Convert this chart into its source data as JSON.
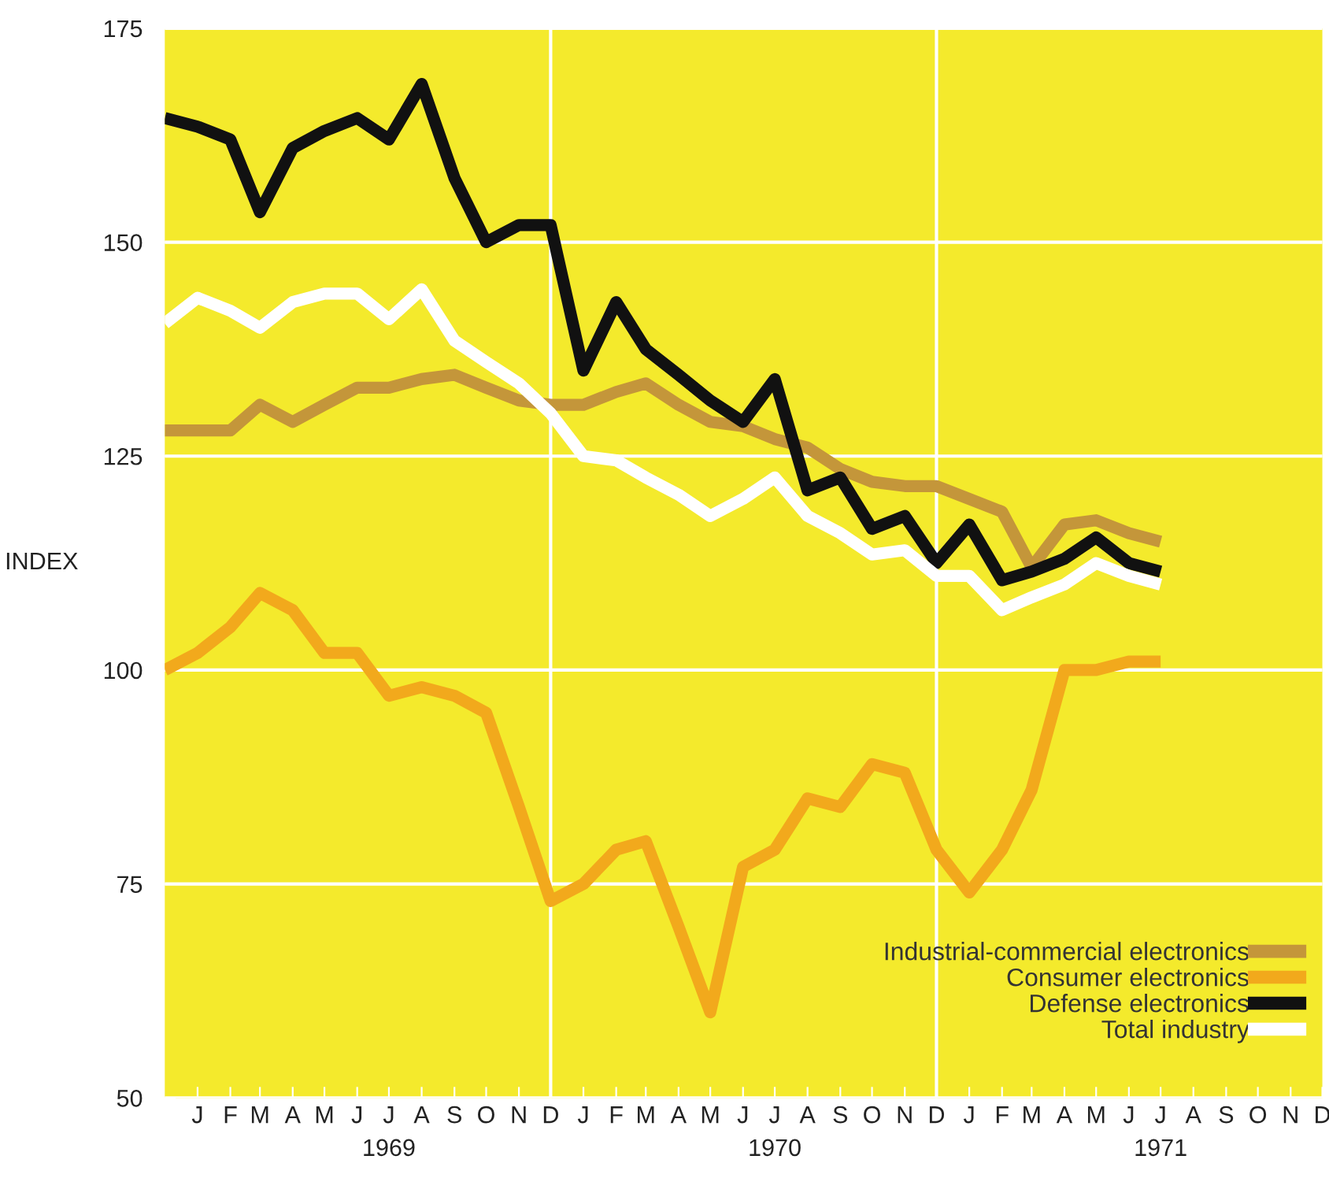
{
  "chart_data": {
    "type": "line",
    "ylabel": "INDEX",
    "x": [
      "1968-12",
      "1969-01",
      "1969-02",
      "1969-03",
      "1969-04",
      "1969-05",
      "1969-06",
      "1969-07",
      "1969-08",
      "1969-09",
      "1969-10",
      "1969-11",
      "1969-12",
      "1970-01",
      "1970-02",
      "1970-03",
      "1970-04",
      "1970-05",
      "1970-06",
      "1970-07",
      "1970-08",
      "1970-09",
      "1970-10",
      "1970-11",
      "1970-12",
      "1971-01",
      "1971-02",
      "1971-03",
      "1971-04",
      "1971-05",
      "1971-06",
      "1971-07"
    ],
    "series": [
      {
        "name": "Industrial-commercial electronics",
        "color": "#c4963a",
        "values": [
          128,
          128,
          128,
          131,
          129,
          131,
          133,
          133,
          134,
          134.5,
          133,
          131.5,
          131,
          131,
          132.5,
          133.5,
          131,
          129,
          128.5,
          127,
          126,
          123.5,
          122,
          121.5,
          121.5,
          120,
          118.5,
          112,
          117,
          117.5,
          116,
          115
        ]
      },
      {
        "name": "Consumer electronics",
        "color": "#f2a91c",
        "values": [
          100,
          102,
          105,
          109,
          107,
          102,
          102,
          97,
          98,
          97,
          95,
          84,
          73,
          75,
          79,
          80,
          70,
          60,
          77,
          79,
          85,
          84,
          89,
          88,
          79,
          74,
          79,
          86,
          100,
          100,
          101,
          101
        ]
      },
      {
        "name": "Defense electronics",
        "color": "#111111",
        "values": [
          164.5,
          163.5,
          162,
          153.5,
          161,
          163,
          164.5,
          162,
          168.5,
          157.5,
          150,
          152,
          152,
          135,
          143,
          137.5,
          134.5,
          131.5,
          129,
          134,
          121,
          122.5,
          116.5,
          118,
          112.5,
          117,
          110.5,
          111.5,
          113,
          115.5,
          112.5,
          111.5
        ]
      },
      {
        "name": "Total industry",
        "color": "#ffffff",
        "values": [
          140.5,
          143.5,
          142,
          140,
          143,
          144,
          144,
          141,
          144.5,
          138.5,
          136,
          133.5,
          130,
          125,
          124.5,
          122.5,
          120.5,
          118,
          120,
          122.5,
          118,
          116,
          113.5,
          114,
          111,
          111,
          107,
          108.5,
          110,
          112.5,
          111,
          110
        ]
      }
    ],
    "xlim": [
      "1968-12-01",
      "1971-12-01"
    ],
    "xticks": [
      {
        "value": "1969-01",
        "label": "J"
      },
      {
        "value": "1969-02",
        "label": "F"
      },
      {
        "value": "1969-03",
        "label": "M"
      },
      {
        "value": "1969-04",
        "label": "A"
      },
      {
        "value": "1969-05",
        "label": "M"
      },
      {
        "value": "1969-06",
        "label": "J"
      },
      {
        "value": "1969-07",
        "label": "J\n1969"
      },
      {
        "value": "1969-08",
        "label": "A"
      },
      {
        "value": "1969-09",
        "label": "S"
      },
      {
        "value": "1969-10",
        "label": "O"
      },
      {
        "value": "1969-11",
        "label": "N"
      },
      {
        "value": "1969-12",
        "label": "D"
      },
      {
        "value": "1970-01",
        "label": "J"
      },
      {
        "value": "1970-02",
        "label": "F"
      },
      {
        "value": "1970-03",
        "label": "M"
      },
      {
        "value": "1970-04",
        "label": "A"
      },
      {
        "value": "1970-05",
        "label": "M"
      },
      {
        "value": "1970-06",
        "label": "J"
      },
      {
        "value": "1970-07",
        "label": "J\n1970"
      },
      {
        "value": "1970-08",
        "label": "A"
      },
      {
        "value": "1970-09",
        "label": "S"
      },
      {
        "value": "1970-10",
        "label": "O"
      },
      {
        "value": "1970-11",
        "label": "N"
      },
      {
        "value": "1970-12",
        "label": "D"
      },
      {
        "value": "1971-01",
        "label": "J"
      },
      {
        "value": "1971-02",
        "label": "F"
      },
      {
        "value": "1971-03",
        "label": "M"
      },
      {
        "value": "1971-04",
        "label": "A"
      },
      {
        "value": "1971-05",
        "label": "M"
      },
      {
        "value": "1971-06",
        "label": "J"
      },
      {
        "value": "1971-07",
        "label": "J\n1971"
      },
      {
        "value": "1971-08",
        "label": "A"
      },
      {
        "value": "1971-09",
        "label": "S"
      },
      {
        "value": "1971-10",
        "label": "O"
      },
      {
        "value": "1971-11",
        "label": "N"
      },
      {
        "value": "1971-12",
        "label": "D"
      }
    ],
    "ylim": [
      50,
      175
    ],
    "yticks": [
      50,
      75,
      100,
      125,
      150,
      175
    ],
    "ref_lines": [
      {
        "axis": "x",
        "value": "1969-12",
        "color": "#ffffff"
      },
      {
        "axis": "x",
        "value": "1970-12",
        "color": "#ffffff"
      }
    ],
    "grid": "y",
    "legend": "bottom right",
    "marker": "none",
    "line_style": "solid"
  }
}
